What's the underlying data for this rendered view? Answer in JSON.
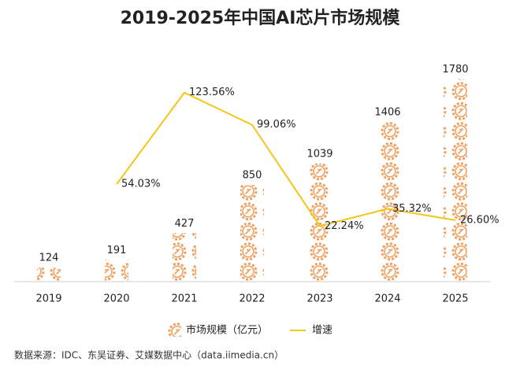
{
  "chart_data": {
    "type": "pictorial-bar-line",
    "title": "2019-2025年中国AI芯片市场规模",
    "categories": [
      "2019",
      "2020",
      "2021",
      "2022",
      "2023",
      "2024",
      "2025"
    ],
    "series": [
      {
        "name": "市场规模（亿元）",
        "color": "#f0a060",
        "values": [
          124,
          191,
          427,
          850,
          1039,
          1406,
          1780
        ]
      },
      {
        "name": "增速",
        "color": "#f5c518",
        "axis": "y2",
        "values": [
          null,
          54.03,
          123.56,
          99.06,
          22.24,
          35.32,
          26.6
        ],
        "value_labels": [
          null,
          "54.03%",
          "123.56%",
          "99.06%",
          "22.24%",
          "35.32%",
          "26.60%"
        ]
      }
    ],
    "ylim": [
      0,
      2200
    ],
    "y2lim": [
      -20,
      170
    ],
    "source": "数据来源：IDC、东吴证券、艾媒数据中心（data.iimedia.cn）"
  }
}
